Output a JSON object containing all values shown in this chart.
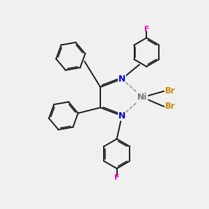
{
  "background_color": "#f0f0f0",
  "bond_color": "#1a1a1a",
  "N_color": "#0000cc",
  "Ni_color": "#7a7a7a",
  "Br_color": "#cc8800",
  "F_color": "#ff00cc",
  "fig_w": 3.0,
  "fig_h": 3.0,
  "dpi": 100,
  "xlim": [
    0,
    10
  ],
  "ylim": [
    0,
    10
  ]
}
